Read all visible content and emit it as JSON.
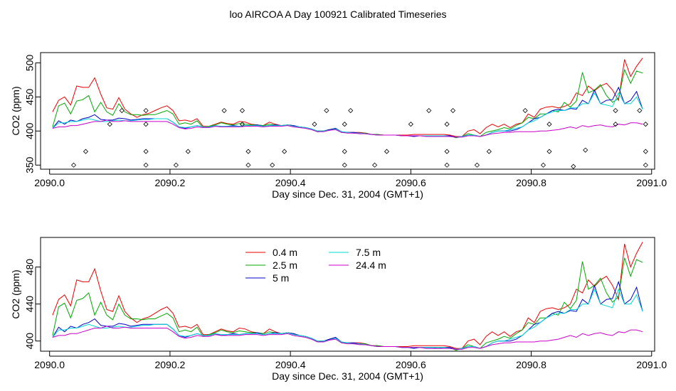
{
  "title": "loo AIRCOA A  Day 100921  Calibrated Timeseries",
  "colors": {
    "s04": "#ee0000",
    "s25": "#00aa00",
    "s5": "#0000cc",
    "s75": "#00d8d8",
    "s244": "#cc00cc",
    "points": "#000000",
    "axis": "#000000"
  },
  "chart_data": [
    {
      "type": "line",
      "xlabel": "Day since Dec. 31, 2004 (GMT+1)",
      "ylabel": "CO2 (ppm)",
      "xlim": [
        2089.985,
        2091.005
      ],
      "ylim": [
        344,
        515
      ],
      "xticks": [
        2090.0,
        2090.2,
        2090.4,
        2090.6,
        2090.8,
        2091.0
      ],
      "xtick_labels": [
        "2090.0",
        "2090.2",
        "2090.4",
        "2090.6",
        "2090.8",
        "2091.0"
      ],
      "yticks": [
        350,
        400,
        450,
        500
      ],
      "ytick_labels": [
        "350",
        "400",
        "450",
        "500"
      ],
      "x": [
        2090.005,
        2090.015,
        2090.025,
        2090.035,
        2090.045,
        2090.055,
        2090.065,
        2090.075,
        2090.085,
        2090.095,
        2090.105,
        2090.115,
        2090.125,
        2090.135,
        2090.145,
        2090.155,
        2090.165,
        2090.175,
        2090.185,
        2090.195,
        2090.205,
        2090.215,
        2090.225,
        2090.235,
        2090.245,
        2090.255,
        2090.265,
        2090.275,
        2090.285,
        2090.295,
        2090.305,
        2090.315,
        2090.325,
        2090.335,
        2090.345,
        2090.355,
        2090.365,
        2090.375,
        2090.385,
        2090.395,
        2090.405,
        2090.415,
        2090.425,
        2090.435,
        2090.445,
        2090.455,
        2090.465,
        2090.475,
        2090.485,
        2090.495,
        2090.505,
        2090.515,
        2090.525,
        2090.535,
        2090.545,
        2090.555,
        2090.565,
        2090.575,
        2090.585,
        2090.595,
        2090.605,
        2090.615,
        2090.625,
        2090.635,
        2090.645,
        2090.655,
        2090.665,
        2090.675,
        2090.685,
        2090.695,
        2090.705,
        2090.715,
        2090.725,
        2090.735,
        2090.745,
        2090.755,
        2090.765,
        2090.775,
        2090.785,
        2090.795,
        2090.805,
        2090.815,
        2090.825,
        2090.835,
        2090.845,
        2090.855,
        2090.865,
        2090.875,
        2090.885,
        2090.895,
        2090.905,
        2090.915,
        2090.925,
        2090.935,
        2090.945,
        2090.955,
        2090.965,
        2090.975,
        2090.985
      ],
      "series": [
        {
          "name": "0.4 m",
          "color": "#ee0000",
          "values": [
            428,
            445,
            450,
            438,
            466,
            464,
            464,
            478,
            454,
            434,
            432,
            449,
            432,
            425,
            420,
            424,
            426,
            430,
            434,
            437,
            430,
            415,
            416,
            414,
            418,
            407,
            407,
            410,
            413,
            411,
            410,
            414,
            413,
            410,
            409,
            408,
            413,
            410,
            408,
            409,
            408,
            406,
            405,
            403,
            400,
            400,
            402,
            404,
            398,
            398,
            398,
            398,
            397,
            395,
            395,
            394,
            394,
            394,
            394,
            394,
            395,
            395,
            395,
            395,
            395,
            395,
            394,
            392,
            392,
            400,
            402,
            396,
            405,
            410,
            406,
            410,
            405,
            410,
            412,
            425,
            420,
            432,
            435,
            436,
            434,
            436,
            440,
            456,
            452,
            466,
            459,
            466,
            470,
            460,
            445,
            505,
            480,
            495,
            507
          ]
        },
        {
          "name": "2.5 m",
          "color": "#00aa00",
          "values": [
            406,
            437,
            441,
            425,
            444,
            446,
            452,
            428,
            442,
            428,
            423,
            440,
            428,
            424,
            424,
            423,
            424,
            424,
            427,
            430,
            425,
            410,
            412,
            410,
            415,
            405,
            407,
            409,
            412,
            410,
            409,
            411,
            410,
            409,
            409,
            408,
            410,
            409,
            408,
            409,
            408,
            406,
            405,
            403,
            400,
            400,
            402,
            404,
            398,
            398,
            397,
            397,
            397,
            395,
            395,
            394,
            394,
            394,
            393,
            393,
            393,
            393,
            393,
            393,
            393,
            393,
            393,
            390,
            392,
            396,
            394,
            392,
            398,
            400,
            402,
            405,
            403,
            408,
            412,
            420,
            418,
            425,
            425,
            430,
            428,
            442,
            435,
            444,
            486,
            456,
            460,
            468,
            452,
            442,
            448,
            490,
            470,
            488,
            485
          ]
        },
        {
          "name": "5 m",
          "color": "#0000cc",
          "values": [
            404,
            415,
            410,
            416,
            414,
            418,
            420,
            424,
            417,
            416,
            416,
            419,
            418,
            416,
            417,
            418,
            418,
            418,
            418,
            418,
            413,
            406,
            404,
            406,
            408,
            406,
            406,
            408,
            406,
            407,
            408,
            407,
            408,
            408,
            409,
            407,
            408,
            409,
            408,
            409,
            408,
            406,
            405,
            403,
            399,
            400,
            402,
            404,
            399,
            398,
            398,
            397,
            396,
            395,
            394,
            394,
            394,
            394,
            393,
            393,
            392,
            393,
            393,
            393,
            392,
            393,
            393,
            391,
            392,
            394,
            394,
            392,
            394,
            398,
            400,
            400,
            400,
            402,
            406,
            412,
            418,
            420,
            425,
            430,
            432,
            430,
            433,
            432,
            445,
            440,
            460,
            440,
            445,
            446,
            464,
            440,
            445,
            458,
            432
          ]
        },
        {
          "name": "7.5 m",
          "color": "#00d8d8",
          "values": [
            404,
            412,
            412,
            414,
            414,
            416,
            418,
            416,
            414,
            414,
            415,
            416,
            415,
            415,
            416,
            417,
            417,
            418,
            418,
            418,
            413,
            406,
            405,
            406,
            408,
            406,
            406,
            408,
            407,
            407,
            407,
            407,
            408,
            408,
            408,
            407,
            408,
            408,
            408,
            409,
            407,
            406,
            405,
            403,
            400,
            400,
            401,
            403,
            399,
            398,
            397,
            397,
            396,
            395,
            394,
            394,
            394,
            394,
            393,
            393,
            393,
            393,
            393,
            393,
            393,
            393,
            392,
            391,
            392,
            394,
            394,
            392,
            394,
            398,
            400,
            400,
            402,
            404,
            406,
            412,
            415,
            420,
            425,
            428,
            430,
            430,
            434,
            434,
            440,
            440,
            456,
            440,
            438,
            436,
            456,
            440,
            440,
            450,
            432
          ]
        },
        {
          "name": "24.4 m",
          "color": "#cc00cc",
          "values": [
            404,
            406,
            406,
            408,
            408,
            410,
            412,
            414,
            414,
            416,
            414,
            414,
            415,
            414,
            414,
            414,
            414,
            414,
            414,
            414,
            410,
            405,
            403,
            404,
            406,
            405,
            405,
            407,
            406,
            406,
            406,
            406,
            407,
            407,
            407,
            406,
            407,
            407,
            407,
            408,
            406,
            405,
            404,
            402,
            399,
            399,
            401,
            402,
            398,
            397,
            397,
            396,
            396,
            395,
            394,
            394,
            394,
            394,
            393,
            393,
            393,
            393,
            392,
            392,
            392,
            392,
            392,
            391,
            391,
            393,
            393,
            392,
            394,
            396,
            397,
            398,
            398,
            399,
            399,
            399,
            399,
            400,
            400,
            401,
            402,
            404,
            406,
            404,
            408,
            406,
            408,
            409,
            407,
            406,
            410,
            409,
            412,
            412,
            410
          ]
        },
        {
          "name": "",
          "type": "scatter",
          "x": [
            2090.04,
            2090.06,
            2090.1,
            2090.12,
            2090.16,
            2090.16,
            2090.16,
            2090.16,
            2090.21,
            2090.23,
            2090.29,
            2090.32,
            2090.32,
            2090.33,
            2090.33,
            2090.37,
            2090.39,
            2090.44,
            2090.46,
            2090.49,
            2090.49,
            2090.49,
            2090.5,
            2090.54,
            2090.56,
            2090.6,
            2090.63,
            2090.66,
            2090.66,
            2090.66,
            2090.67,
            2090.71,
            2090.73,
            2090.79,
            2090.82,
            2090.83,
            2090.83,
            2090.87,
            2090.89,
            2090.94,
            2090.94,
            2090.98,
            2090.99,
            2090.99,
            2090.99
          ],
          "values": [
            350,
            370,
            410,
            430,
            350,
            370,
            410,
            430,
            350,
            370,
            430,
            410,
            430,
            370,
            350,
            350,
            370,
            410,
            430,
            350,
            370,
            410,
            430,
            350,
            370,
            410,
            430,
            350,
            370,
            410,
            430,
            350,
            370,
            430,
            350,
            370,
            410,
            348,
            372,
            410,
            430,
            430,
            350,
            370,
            410
          ]
        }
      ]
    },
    {
      "type": "line",
      "xlabel": "Day since Dec. 31, 2004 (GMT+1)",
      "ylabel": "CO2 (ppm)",
      "xlim": [
        2089.985,
        2091.005
      ],
      "ylim": [
        389,
        512
      ],
      "xticks": [
        2090.0,
        2090.2,
        2090.4,
        2090.6,
        2090.8,
        2091.0
      ],
      "xtick_labels": [
        "2090.0",
        "2090.2",
        "2090.4",
        "2090.6",
        "2090.8",
        "2091.0"
      ],
      "yticks": [
        400,
        440,
        480
      ],
      "ytick_labels": [
        "400",
        "440",
        "480"
      ],
      "legend_position": "top-center",
      "legend": [
        "0.4 m",
        "2.5 m",
        "5 m",
        "7.5 m",
        "24.4 m"
      ],
      "series_ref": "same series as first plot (0.4 m, 2.5 m, 5 m, 7.5 m, 24.4 m)"
    }
  ]
}
